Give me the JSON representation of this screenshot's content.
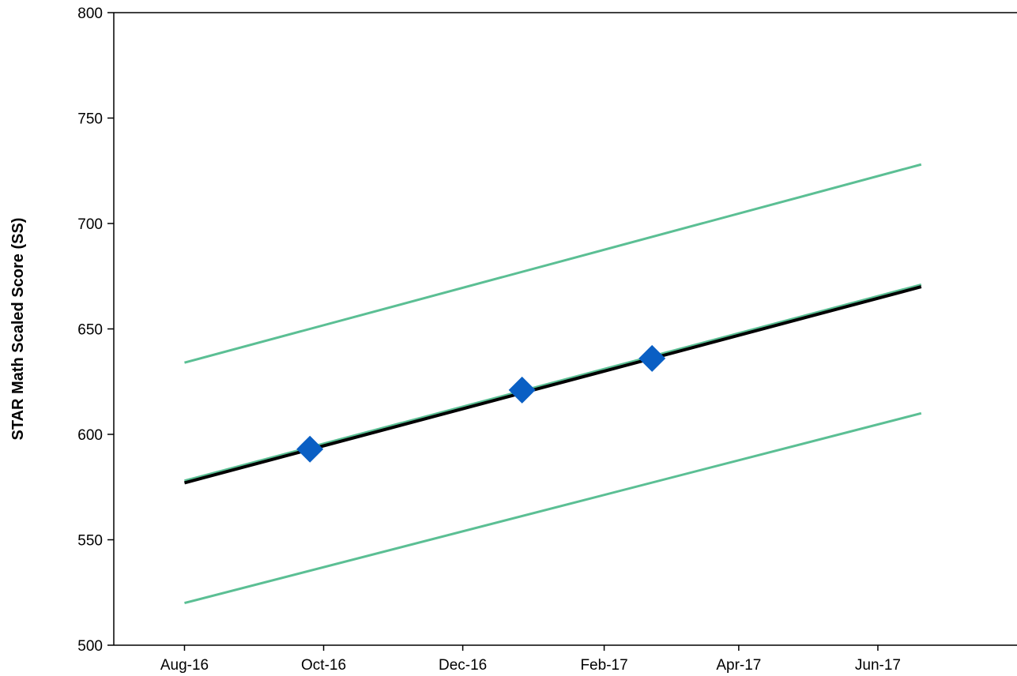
{
  "chart_data": {
    "type": "line",
    "title": "",
    "xlabel": "",
    "ylabel": "STAR Math Scaled Score (SS)",
    "ylim": [
      500,
      800
    ],
    "xlim": [
      "2016-07-01",
      "2017-08-01"
    ],
    "x_ticks": [
      {
        "label": "Aug-16",
        "date": "2016-08-01"
      },
      {
        "label": "Oct-16",
        "date": "2016-10-01"
      },
      {
        "label": "Dec-16",
        "date": "2016-12-01"
      },
      {
        "label": "Feb-17",
        "date": "2017-02-01"
      },
      {
        "label": "Apr-17",
        "date": "2017-04-01"
      },
      {
        "label": "Jun-17",
        "date": "2017-06-01"
      }
    ],
    "y_ticks": [
      500,
      550,
      600,
      650,
      700,
      750,
      800
    ],
    "grid": false,
    "series": [
      {
        "role": "upper-line",
        "color": "#5BBF94",
        "points": [
          {
            "x": "2016-08-01",
            "y": 634
          },
          {
            "x": "2017-06-20",
            "y": 728
          }
        ]
      },
      {
        "role": "middle-line",
        "color": "#5BBF94",
        "points": [
          {
            "x": "2016-08-01",
            "y": 578
          },
          {
            "x": "2017-06-20",
            "y": 671
          }
        ]
      },
      {
        "role": "lower-line",
        "color": "#5BBF94",
        "points": [
          {
            "x": "2016-08-01",
            "y": 520
          },
          {
            "x": "2017-06-20",
            "y": 610
          }
        ]
      },
      {
        "role": "trend-line",
        "color": "#000000",
        "points": [
          {
            "x": "2016-08-01",
            "y": 577
          },
          {
            "x": "2017-06-20",
            "y": 670
          }
        ]
      },
      {
        "role": "scores",
        "type": "scatter",
        "marker": "diamond",
        "color": "#0A5FC4",
        "points": [
          {
            "x": "2016-09-25",
            "y": 593
          },
          {
            "x": "2016-12-27",
            "y": 621
          },
          {
            "x": "2017-02-22",
            "y": 636
          }
        ]
      }
    ]
  }
}
